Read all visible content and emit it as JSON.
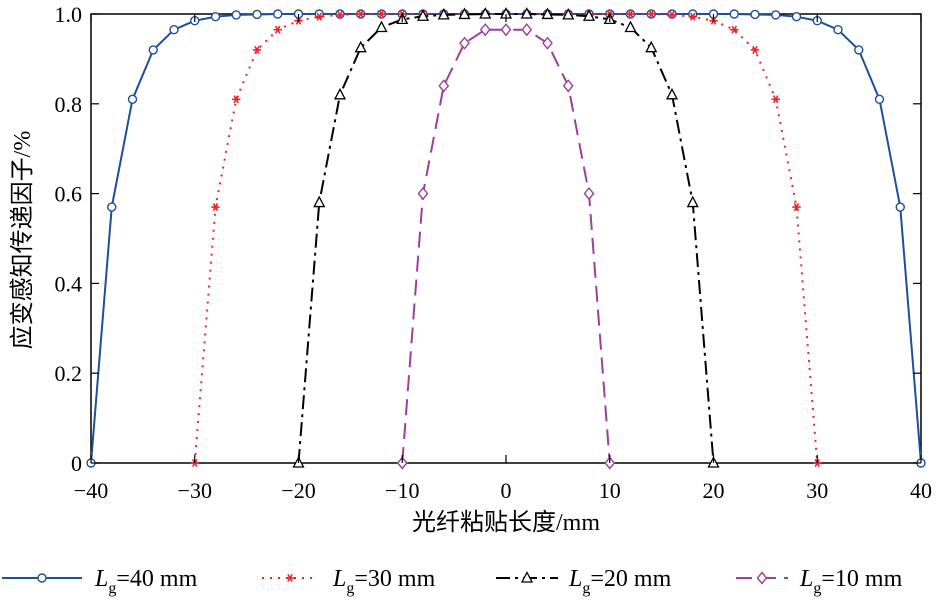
{
  "chart_data": {
    "type": "line",
    "title": "",
    "xlabel": "光纤粘贴长度/mm",
    "ylabel": "应变感知传递因子/%",
    "xlim": [
      -40,
      40
    ],
    "ylim": [
      0,
      1.0
    ],
    "x_ticks": [
      -40,
      -30,
      -20,
      -10,
      0,
      10,
      20,
      30,
      40
    ],
    "x_tick_labels": [
      "−40",
      "−30",
      "−20",
      "−10",
      "0",
      "10",
      "20",
      "30",
      "40"
    ],
    "y_ticks": [
      0,
      0.2,
      0.4,
      0.6,
      0.8,
      1.0
    ],
    "y_tick_labels": [
      "0",
      "0.2",
      "0.4",
      "0.6",
      "0.8",
      "1.0"
    ],
    "grid": false,
    "legend_position": "bottom",
    "series": [
      {
        "name": "L",
        "subscript": "g",
        "suffix": "=40 mm",
        "color": "#1f4e9b",
        "dash": "",
        "marker": "circle",
        "x": [
          -40,
          -38,
          -36,
          -34,
          -32,
          -30,
          -28,
          -26,
          -24,
          -22,
          -20,
          -18,
          -16,
          -14,
          -12,
          -10,
          -8,
          -6,
          -4,
          -2,
          0,
          2,
          4,
          6,
          8,
          10,
          12,
          14,
          16,
          18,
          20,
          22,
          24,
          26,
          28,
          30,
          32,
          34,
          36,
          38,
          40
        ],
        "y": [
          0,
          0.57,
          0.81,
          0.92,
          0.965,
          0.985,
          0.994,
          0.998,
          0.999,
          1.0,
          1.0,
          1.0,
          1.0,
          1.0,
          1.0,
          1.0,
          1.0,
          1.0,
          1.0,
          1.0,
          1.0,
          1.0,
          1.0,
          1.0,
          1.0,
          1.0,
          1.0,
          1.0,
          1.0,
          1.0,
          1.0,
          1.0,
          0.999,
          0.998,
          0.994,
          0.985,
          0.965,
          0.92,
          0.81,
          0.57,
          0
        ]
      },
      {
        "name": "L",
        "subscript": "g",
        "suffix": "=30 mm",
        "color": "#e8262a",
        "dash": "2 6",
        "marker": "asterisk",
        "x": [
          -30,
          -28,
          -26,
          -24,
          -22,
          -20,
          -18,
          -16,
          -14,
          -12,
          -10,
          -8,
          -6,
          -4,
          -2,
          0,
          2,
          4,
          6,
          8,
          10,
          12,
          14,
          16,
          18,
          20,
          22,
          24,
          26,
          28,
          30
        ],
        "y": [
          0,
          0.57,
          0.81,
          0.92,
          0.965,
          0.985,
          0.994,
          0.998,
          1.0,
          1.0,
          1.0,
          1.0,
          1.0,
          1.0,
          1.0,
          1.0,
          1.0,
          1.0,
          1.0,
          1.0,
          1.0,
          1.0,
          1.0,
          0.998,
          0.994,
          0.985,
          0.965,
          0.92,
          0.81,
          0.57,
          0
        ]
      },
      {
        "name": "L",
        "subscript": "g",
        "suffix": "=20 mm",
        "color": "#000000",
        "dash": "14 5 3 5",
        "marker": "triangle",
        "x": [
          -20,
          -18,
          -16,
          -14,
          -12,
          -10,
          -8,
          -6,
          -4,
          -2,
          0,
          2,
          4,
          6,
          8,
          10,
          12,
          14,
          16,
          18,
          20
        ],
        "y": [
          0,
          0.58,
          0.82,
          0.925,
          0.97,
          0.988,
          0.995,
          0.998,
          0.999,
          1.0,
          1.0,
          1.0,
          0.999,
          0.998,
          0.995,
          0.988,
          0.97,
          0.925,
          0.82,
          0.58,
          0
        ]
      },
      {
        "name": "L",
        "subscript": "g",
        "suffix": "=10 mm",
        "color": "#9b3f9b",
        "dash": "16 8",
        "marker": "diamond",
        "x": [
          -10,
          -8,
          -6,
          -4,
          -2,
          0,
          2,
          4,
          6,
          8,
          10
        ],
        "y": [
          0,
          0.6,
          0.84,
          0.935,
          0.965,
          0.965,
          0.965,
          0.935,
          0.84,
          0.6,
          0
        ]
      }
    ]
  }
}
